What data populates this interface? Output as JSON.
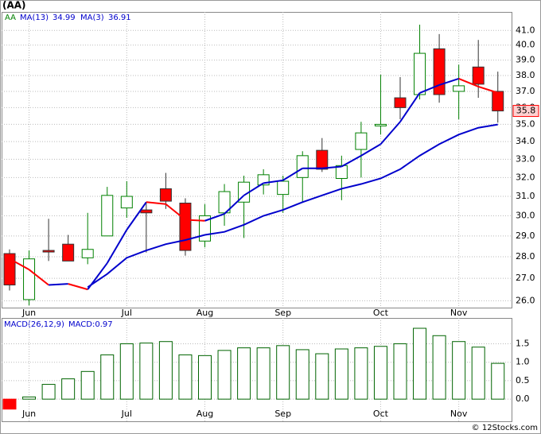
{
  "chart_data": [
    {
      "type": "candlestick",
      "title": "(AA)",
      "symbol": "AA",
      "categories": [
        null,
        "Jun",
        null,
        null,
        null,
        null,
        "Jul",
        null,
        null,
        null,
        "Aug",
        null,
        null,
        null,
        "Sep",
        null,
        null,
        null,
        null,
        "Oct",
        null,
        null,
        null,
        "Nov",
        null,
        null
      ],
      "open": [
        28.15,
        26.05,
        28.3,
        28.6,
        27.95,
        29.0,
        30.4,
        30.3,
        31.4,
        30.65,
        28.75,
        30.15,
        30.7,
        31.6,
        31.1,
        32.0,
        33.5,
        31.95,
        33.55,
        34.95,
        36.6,
        36.8,
        39.75,
        37.0,
        38.55,
        37.0
      ],
      "high": [
        28.35,
        28.3,
        29.85,
        29.05,
        30.15,
        31.5,
        31.8,
        30.7,
        32.25,
        30.9,
        30.6,
        31.65,
        32.1,
        32.45,
        32.1,
        33.45,
        34.2,
        33.2,
        35.15,
        38.05,
        37.9,
        41.4,
        40.75,
        38.7,
        40.35,
        38.25
      ],
      "low": [
        26.45,
        25.8,
        27.8,
        27.8,
        27.65,
        29.0,
        29.9,
        28.2,
        30.35,
        28.05,
        28.45,
        29.5,
        28.9,
        31.1,
        30.15,
        30.7,
        32.3,
        30.8,
        32.0,
        34.4,
        35.3,
        36.5,
        36.3,
        35.3,
        36.6,
        35.1
      ],
      "close": [
        26.7,
        27.9,
        28.25,
        27.8,
        28.35,
        31.05,
        31.0,
        30.15,
        30.75,
        28.3,
        30.0,
        31.25,
        31.75,
        32.15,
        31.8,
        33.2,
        32.45,
        32.65,
        34.5,
        35.0,
        36.0,
        39.45,
        36.8,
        37.35,
        37.45,
        35.8
      ],
      "close_label": "35.8",
      "up_color": "#008000",
      "down_color": "#ff0000",
      "series": [
        {
          "name": "MA(13)",
          "value_label": "34.99",
          "color": "#0000cc",
          "values": [
            null,
            null,
            null,
            null,
            26.6,
            27.2,
            27.95,
            28.3,
            28.6,
            28.8,
            29.05,
            29.2,
            29.55,
            30.0,
            30.3,
            30.7,
            31.05,
            31.4,
            31.65,
            31.95,
            32.45,
            33.2,
            33.85,
            34.4,
            34.8,
            34.99
          ]
        },
        {
          "name": "MA(3)",
          "value_label": "36.91",
          "color": "#0000cc",
          "down_color": "#ff0000",
          "values": [
            27.9,
            27.4,
            26.7,
            26.75,
            26.5,
            27.7,
            29.3,
            30.7,
            30.6,
            29.8,
            29.75,
            30.1,
            31.05,
            31.7,
            31.85,
            32.5,
            32.5,
            32.6,
            33.2,
            33.85,
            35.15,
            36.9,
            37.4,
            37.8,
            37.3,
            36.91
          ]
        }
      ],
      "log": true,
      "grid": true,
      "ylim": [
        25.7,
        42.3
      ],
      "yticks": [
        {
          "value": 26,
          "label": "26.0"
        },
        {
          "value": 27,
          "label": "27.0"
        },
        {
          "value": 28,
          "label": "28.0"
        },
        {
          "value": 29,
          "label": "29.0"
        },
        {
          "value": 30,
          "label": "30.0"
        },
        {
          "value": 31,
          "label": "31.0"
        },
        {
          "value": 32,
          "label": "32.0"
        },
        {
          "value": 33,
          "label": "33.0"
        },
        {
          "value": 34,
          "label": "34.0"
        },
        {
          "value": 35,
          "label": "35.0"
        },
        {
          "value": 36,
          "label": "36.0"
        },
        {
          "value": 37,
          "label": "37.0"
        },
        {
          "value": 38,
          "label": "38.0"
        },
        {
          "value": 39,
          "label": "39.0"
        },
        {
          "value": 40,
          "label": "40.0"
        },
        {
          "value": 41,
          "label": "41.0"
        }
      ]
    },
    {
      "type": "bar",
      "title": "MACD(26,12,9)",
      "value_label": "MACD:0.97",
      "values": [
        -0.27,
        0.06,
        0.4,
        0.55,
        0.75,
        1.2,
        1.5,
        1.52,
        1.56,
        1.2,
        1.18,
        1.32,
        1.39,
        1.39,
        1.45,
        1.34,
        1.23,
        1.36,
        1.39,
        1.43,
        1.5,
        1.92,
        1.72,
        1.56,
        1.41,
        0.97
      ],
      "color": "#006400",
      "negative_color": "#ff0000",
      "grid": true,
      "ylim": [
        -0.6,
        2.2
      ],
      "yticks": [
        {
          "value": 0,
          "label": "0.0"
        },
        0.5,
        {
          "value": 1,
          "label": "1.0"
        },
        1.5
      ],
      "footer": "© 12Stocks.com"
    }
  ]
}
